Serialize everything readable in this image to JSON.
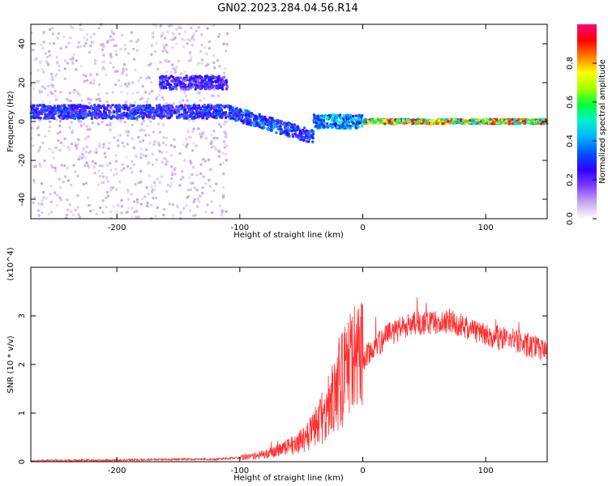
{
  "title": "GN02.2023.284.04.56.R14",
  "chart_data": [
    {
      "type": "heatmap",
      "xlabel": "Height of straight line (km)",
      "ylabel": "Frequency (Hz)",
      "xlim": [
        -270,
        150
      ],
      "ylim": [
        -50,
        50
      ],
      "xticks": [
        -200,
        -100,
        0,
        100
      ],
      "yticks": [
        -40,
        -20,
        0,
        20,
        40
      ],
      "colorbar": {
        "label": "Normalized spectral amplitude",
        "range": [
          0,
          1
        ],
        "ticks": [
          0.0,
          0.2,
          0.4,
          0.6,
          0.8
        ],
        "colors": [
          "#ffffff",
          "#c8a8f0",
          "#8040ff",
          "#3000ff",
          "#0050ff",
          "#00b0ff",
          "#00f0d0",
          "#00ff40",
          "#a0ff00",
          "#ffff00",
          "#ff8000",
          "#ff0000",
          "#ff0080"
        ]
      },
      "features": [
        {
          "x": [
            -270,
            -110
          ],
          "y": 5,
          "amplitude": 0.35,
          "name": "band near 5 Hz"
        },
        {
          "x": [
            -165,
            -110
          ],
          "y": 20,
          "amplitude": 0.3,
          "name": "band near 20 Hz"
        },
        {
          "x": [
            -110,
            -40
          ],
          "y": [
            5,
            -8
          ],
          "amplitude": 0.4,
          "name": "descending band"
        },
        {
          "x": [
            -40,
            0
          ],
          "y": 0,
          "amplitude": 0.5,
          "name": "band near 0 Hz"
        },
        {
          "x": [
            0,
            150
          ],
          "y": 0,
          "amplitude": 0.9,
          "name": "strong line at 0 Hz"
        }
      ]
    },
    {
      "type": "line",
      "xlabel": "Height of straight line (km)",
      "ylabel": "SNR (10 * v/v)",
      "multiplier": "(x10^4)",
      "xlim": [
        -270,
        150
      ],
      "ylim": [
        0,
        4
      ],
      "xticks": [
        -200,
        -100,
        0,
        100
      ],
      "yticks": [
        0,
        1,
        2,
        3
      ],
      "color": "#ff3030",
      "x": [
        -270,
        -200,
        -150,
        -120,
        -100,
        -80,
        -60,
        -45,
        -30,
        -20,
        -10,
        0,
        20,
        40,
        60,
        70,
        80,
        100,
        120,
        140,
        150
      ],
      "y": [
        0.02,
        0.03,
        0.05,
        0.05,
        0.08,
        0.15,
        0.3,
        0.5,
        1.0,
        1.6,
        2.0,
        2.1,
        2.6,
        2.85,
        2.85,
        2.9,
        2.8,
        2.6,
        2.5,
        2.35,
        2.3
      ]
    }
  ]
}
